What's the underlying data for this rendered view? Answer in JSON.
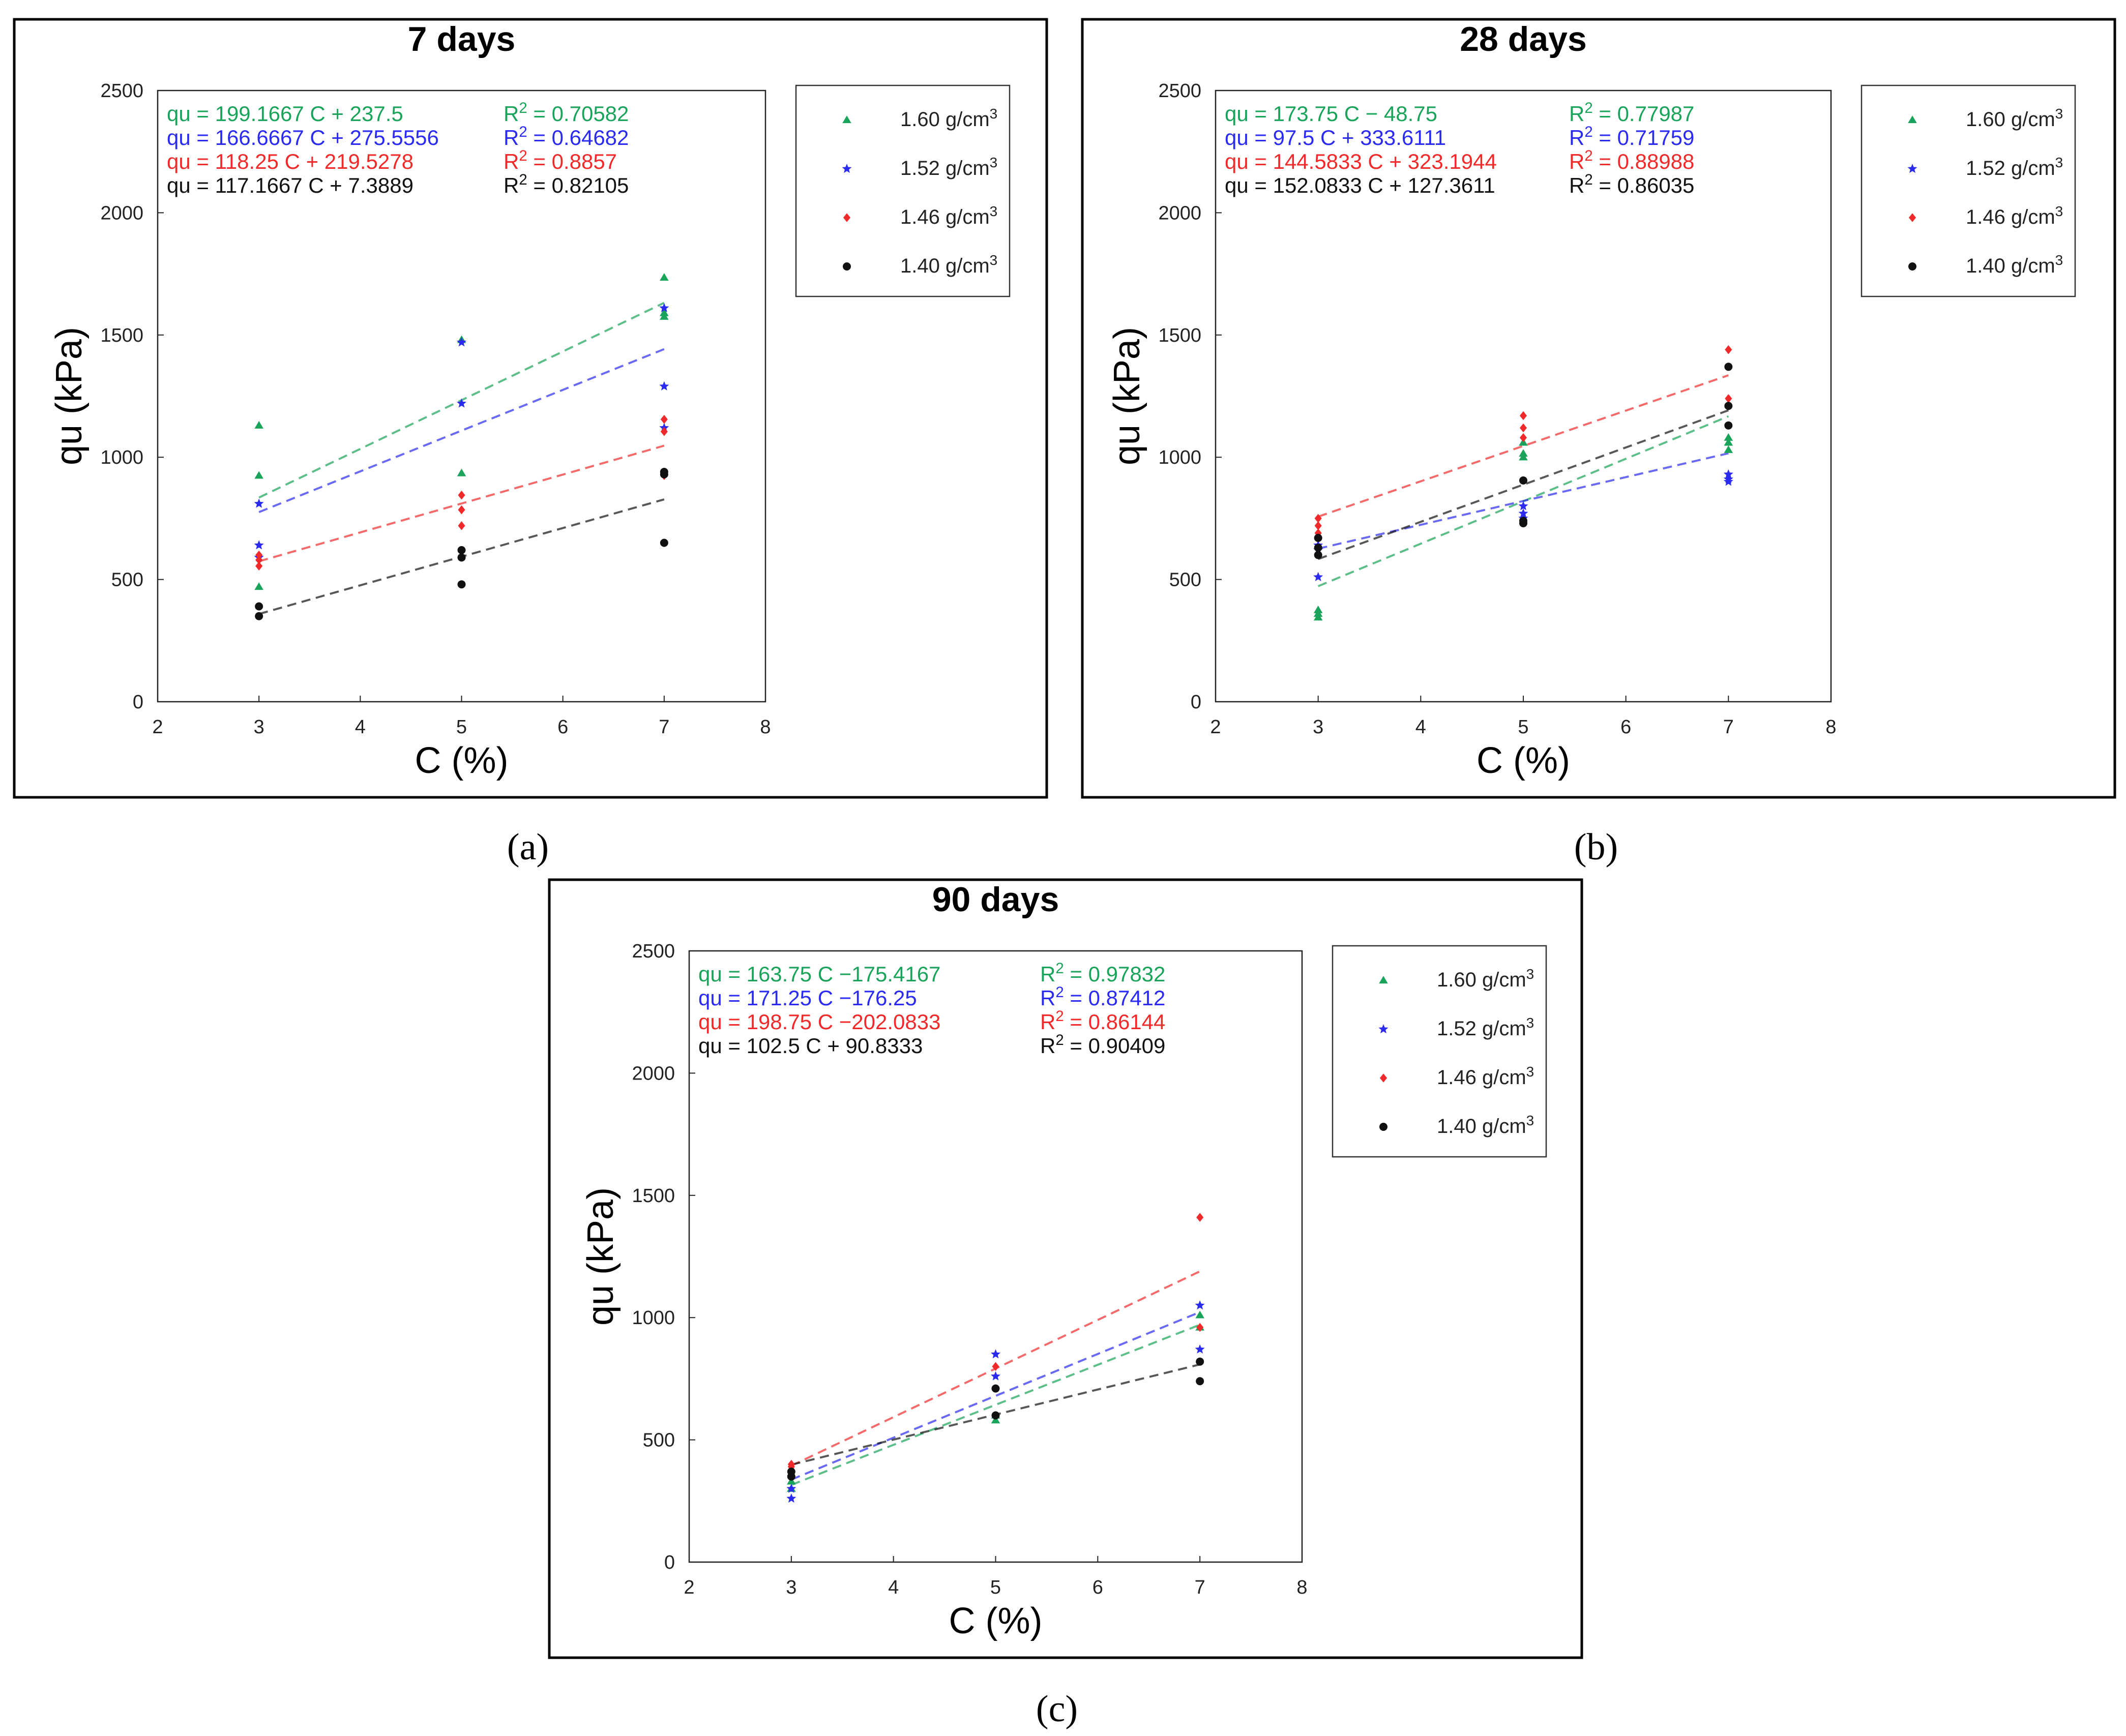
{
  "series_colors": {
    "green": "#1aa35a",
    "blue": "#2a2af0",
    "red": "#f02a2a",
    "black": "#111111"
  },
  "legend_symbols": {
    "green": "triangle",
    "blue": "star",
    "red": "diamond",
    "black": "circle"
  },
  "chart_data": [
    {
      "type": "scatter",
      "title": "7 days",
      "caption": "(a)",
      "xlabel": "C (%)",
      "ylabel": "qu (kPa)",
      "xlim": [
        2,
        8
      ],
      "ylim": [
        0,
        2500
      ],
      "xticks": [
        "2",
        "3",
        "4",
        "5",
        "6",
        "7",
        "8"
      ],
      "yticks": [
        "0",
        "500",
        "1000",
        "1500",
        "2000",
        "2500"
      ],
      "series": [
        {
          "name": "1.60 g/cm³",
          "color": "green",
          "equation": "qu = 199.1667 C + 237.5",
          "r2": "R² = 0.70582",
          "slope": 199.1667,
          "intercept": 237.5,
          "x": [
            3,
            3,
            3,
            5,
            5,
            7,
            7,
            7
          ],
          "y": [
            1130,
            925,
            470,
            1480,
            935,
            1735,
            1590,
            1575
          ]
        },
        {
          "name": "1.52 g/cm³",
          "color": "blue",
          "equation": "qu = 166.6667 C + 275.5556",
          "r2": "R² = 0.64682",
          "slope": 166.6667,
          "intercept": 275.5556,
          "x": [
            3,
            3,
            3,
            5,
            5,
            7,
            7,
            7
          ],
          "y": [
            810,
            640,
            590,
            1470,
            1220,
            1610,
            1290,
            1120
          ]
        },
        {
          "name": "1.46 g/cm³",
          "color": "red",
          "equation": "qu = 118.25 C + 219.5278",
          "r2": "R² = 0.8857",
          "slope": 118.25,
          "intercept": 219.5278,
          "x": [
            3,
            3,
            3,
            5,
            5,
            5,
            7,
            7,
            7
          ],
          "y": [
            600,
            580,
            555,
            845,
            785,
            720,
            1155,
            1105,
            925
          ]
        },
        {
          "name": "1.40 g/cm³",
          "color": "black",
          "equation": "qu = 117.1667 C + 7.3889",
          "r2": "R² = 0.82105",
          "slope": 117.1667,
          "intercept": 7.3889,
          "x": [
            3,
            3,
            5,
            5,
            5,
            7,
            7,
            7
          ],
          "y": [
            390,
            350,
            620,
            590,
            480,
            940,
            930,
            650
          ]
        }
      ]
    },
    {
      "type": "scatter",
      "title": "28 days",
      "caption": "(b)",
      "xlabel": "C (%)",
      "ylabel": "qu (kPa)",
      "xlim": [
        2,
        8
      ],
      "ylim": [
        0,
        2500
      ],
      "xticks": [
        "2",
        "3",
        "4",
        "5",
        "6",
        "7",
        "8"
      ],
      "yticks": [
        "0",
        "500",
        "1000",
        "1500",
        "2000",
        "2500"
      ],
      "series": [
        {
          "name": "1.60 g/cm³",
          "color": "green",
          "equation": "qu = 173.75 C − 48.75",
          "r2": "R² = 0.77987",
          "slope": 173.75,
          "intercept": -48.75,
          "x": [
            3,
            3,
            3,
            5,
            5,
            5,
            7,
            7,
            7
          ],
          "y": [
            375,
            360,
            345,
            1060,
            1015,
            1000,
            1080,
            1060,
            1030
          ]
        },
        {
          "name": "1.52 g/cm³",
          "color": "blue",
          "equation": "qu = 97.5 C + 333.6111",
          "r2": "R² = 0.71759",
          "slope": 97.5,
          "intercept": 333.6111,
          "x": [
            3,
            3,
            3,
            5,
            5,
            5,
            7,
            7,
            7
          ],
          "y": [
            640,
            620,
            510,
            800,
            770,
            750,
            930,
            910,
            900
          ]
        },
        {
          "name": "1.46 g/cm³",
          "color": "red",
          "equation": "qu = 144.5833 C + 323.1944",
          "r2": "R² = 0.88988",
          "slope": 144.5833,
          "intercept": 323.1944,
          "x": [
            3,
            3,
            3,
            5,
            5,
            5,
            7,
            7
          ],
          "y": [
            750,
            720,
            690,
            1170,
            1120,
            1080,
            1440,
            1240
          ]
        },
        {
          "name": "1.40 g/cm³",
          "color": "black",
          "equation": "qu = 152.0833 C + 127.3611",
          "r2": "R² = 0.86035",
          "slope": 152.0833,
          "intercept": 127.3611,
          "x": [
            3,
            3,
            3,
            5,
            5,
            5,
            7,
            7,
            7
          ],
          "y": [
            670,
            630,
            600,
            905,
            740,
            730,
            1370,
            1210,
            1130
          ]
        }
      ]
    },
    {
      "type": "scatter",
      "title": "90 days",
      "caption": "(c)",
      "xlabel": "C (%)",
      "ylabel": "qu (kPa)",
      "xlim": [
        2,
        8
      ],
      "ylim": [
        0,
        2500
      ],
      "xticks": [
        "2",
        "3",
        "4",
        "5",
        "6",
        "7",
        "8"
      ],
      "yticks": [
        "0",
        "500",
        "1000",
        "1500",
        "2000",
        "2500"
      ],
      "series": [
        {
          "name": "1.60 g/cm³",
          "color": "green",
          "equation": "qu = 163.75 C −175.4167",
          "r2": "R² = 0.97832",
          "slope": 163.75,
          "intercept": -175.4167,
          "x": [
            3,
            3,
            5,
            5,
            7,
            7
          ],
          "y": [
            330,
            300,
            600,
            580,
            1010,
            960
          ]
        },
        {
          "name": "1.52 g/cm³",
          "color": "blue",
          "equation": "qu = 171.25 C −176.25",
          "r2": "R² = 0.87412",
          "slope": 171.25,
          "intercept": -176.25,
          "x": [
            3,
            3,
            5,
            5,
            7,
            7
          ],
          "y": [
            300,
            260,
            850,
            760,
            1050,
            870
          ]
        },
        {
          "name": "1.46 g/cm³",
          "color": "red",
          "equation": "qu = 198.75 C −202.0833",
          "r2": "R² = 0.86144",
          "slope": 198.75,
          "intercept": -202.0833,
          "x": [
            3,
            3,
            5,
            7,
            7
          ],
          "y": [
            400,
            390,
            800,
            1410,
            960
          ]
        },
        {
          "name": "1.40 g/cm³",
          "color": "black",
          "equation": "qu = 102.5 C + 90.8333",
          "r2": "R² = 0.90409",
          "slope": 102.5,
          "intercept": 90.8333,
          "x": [
            3,
            3,
            5,
            5,
            7,
            7
          ],
          "y": [
            370,
            350,
            710,
            600,
            820,
            740
          ]
        }
      ]
    }
  ]
}
